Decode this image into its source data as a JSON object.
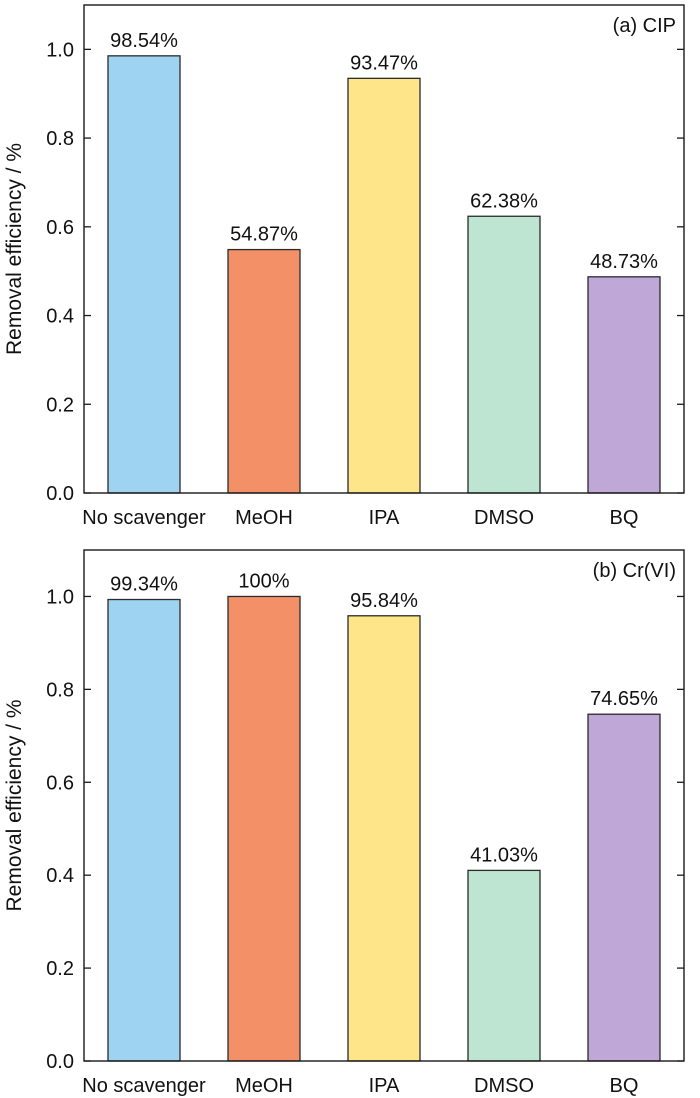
{
  "chart_data": [
    {
      "type": "bar",
      "panel_label": "(a) CIP",
      "ylabel": "Removal efficiency / %",
      "xlabel": "",
      "ylim": [
        0,
        1.1
      ],
      "yticks": [
        "0.0",
        "0.2",
        "0.4",
        "0.6",
        "0.8",
        "1.0"
      ],
      "categories": [
        "No scavenger",
        "MeOH",
        "IPA",
        "DMSO",
        "BQ"
      ],
      "values": [
        0.9854,
        0.5487,
        0.9347,
        0.6238,
        0.4873
      ],
      "value_labels": [
        "98.54%",
        "54.87%",
        "93.47%",
        "62.38%",
        "48.73%"
      ],
      "colors": [
        "#9fd3f2",
        "#f39067",
        "#ffe58a",
        "#bde5d2",
        "#bfa7d8"
      ],
      "grid": false
    },
    {
      "type": "bar",
      "panel_label": "(b) Cr(VI)",
      "ylabel": "Removal efficiency / %",
      "xlabel": "",
      "ylim": [
        0,
        1.1
      ],
      "yticks": [
        "0.0",
        "0.2",
        "0.4",
        "0.6",
        "0.8",
        "1.0"
      ],
      "categories": [
        "No scavenger",
        "MeOH",
        "IPA",
        "DMSO",
        "BQ"
      ],
      "values": [
        0.9934,
        1.0,
        0.9584,
        0.4103,
        0.7465
      ],
      "value_labels": [
        "99.34%",
        "100%",
        "95.84%",
        "41.03%",
        "74.65%"
      ],
      "colors": [
        "#9fd3f2",
        "#f39067",
        "#ffe58a",
        "#bde5d2",
        "#bfa7d8"
      ],
      "grid": false
    }
  ]
}
